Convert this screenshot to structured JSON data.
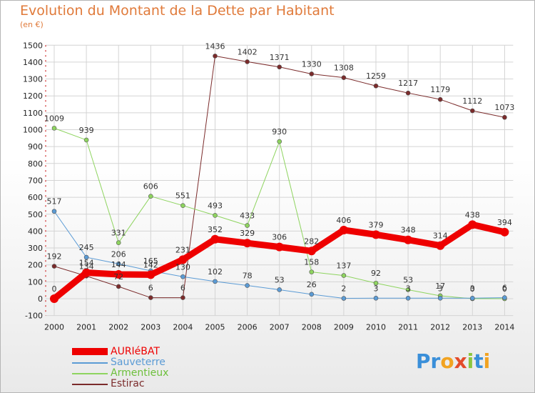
{
  "title": "Evolution du Montant de la Dette par Habitant",
  "subtitle": "(en €)",
  "brand": {
    "letters": [
      "P",
      "r",
      "o",
      "x",
      "i",
      "t",
      "i"
    ],
    "colors": [
      "#3a8fd9",
      "#3a8fd9",
      "#f2a321",
      "#e34b2a",
      "#8cc63f",
      "#3a8fd9",
      "#f2a321"
    ]
  },
  "chart_data": {
    "type": "line",
    "title": "Evolution du Montant de la Dette par Habitant",
    "subtitle": "(en €)",
    "xlabel": "",
    "ylabel": "",
    "categories": [
      "2000",
      "2001",
      "2002",
      "2003",
      "2004",
      "2005",
      "2006",
      "2007",
      "2008",
      "2009",
      "2010",
      "2011",
      "2012",
      "2013",
      "2014"
    ],
    "ylim": [
      -100,
      1500
    ],
    "yticks": [
      -100,
      0,
      100,
      200,
      300,
      400,
      500,
      600,
      700,
      800,
      900,
      1000,
      1100,
      1200,
      1300,
      1400,
      1500
    ],
    "grid": true,
    "legend_position": "bottom-left",
    "series": [
      {
        "name": "AURIéBAT",
        "color": "#ee0000",
        "width": 9,
        "values": [
          0,
          154,
          144,
          142,
          231,
          352,
          329,
          306,
          282,
          406,
          379,
          348,
          314,
          438,
          394
        ],
        "labels": [
          "0",
          "154",
          "144",
          "142",
          "231",
          "352",
          "329",
          "306",
          "282",
          "406",
          "379",
          "348",
          "314",
          "438",
          "394"
        ]
      },
      {
        "name": "Sauveterre",
        "color": "#5b9bd5",
        "width": 1,
        "values": [
          517,
          245,
          206,
          165,
          130,
          102,
          78,
          53,
          26,
          2,
          3,
          3,
          3,
          3,
          6
        ],
        "labels": [
          "517",
          "245",
          "206",
          "165",
          "130",
          "102",
          "78",
          "53",
          "26",
          "2",
          "3",
          "3",
          "3",
          "3",
          "6"
        ]
      },
      {
        "name": "Armentieux",
        "color": "#8ed45f",
        "width": 1,
        "values": [
          1009,
          939,
          331,
          606,
          551,
          493,
          433,
          930,
          158,
          137,
          92,
          53,
          17,
          0,
          0
        ],
        "labels": [
          "1009",
          "939",
          "331",
          "606",
          "551",
          "493",
          "433",
          "930",
          "158",
          "137",
          "92",
          "53",
          "17",
          "0",
          "0"
        ]
      },
      {
        "name": "Estirac",
        "color": "#7b2b2b",
        "width": 1,
        "values": [
          192,
          134,
          72,
          6,
          6,
          1436,
          1402,
          1371,
          1330,
          1308,
          1259,
          1217,
          1179,
          1112,
          1073
        ],
        "labels": [
          "192",
          "134",
          "72",
          "6",
          "6",
          "1436",
          "1402",
          "1371",
          "1330",
          "1308",
          "1259",
          "1217",
          "1179",
          "1112",
          "1073"
        ]
      }
    ]
  }
}
